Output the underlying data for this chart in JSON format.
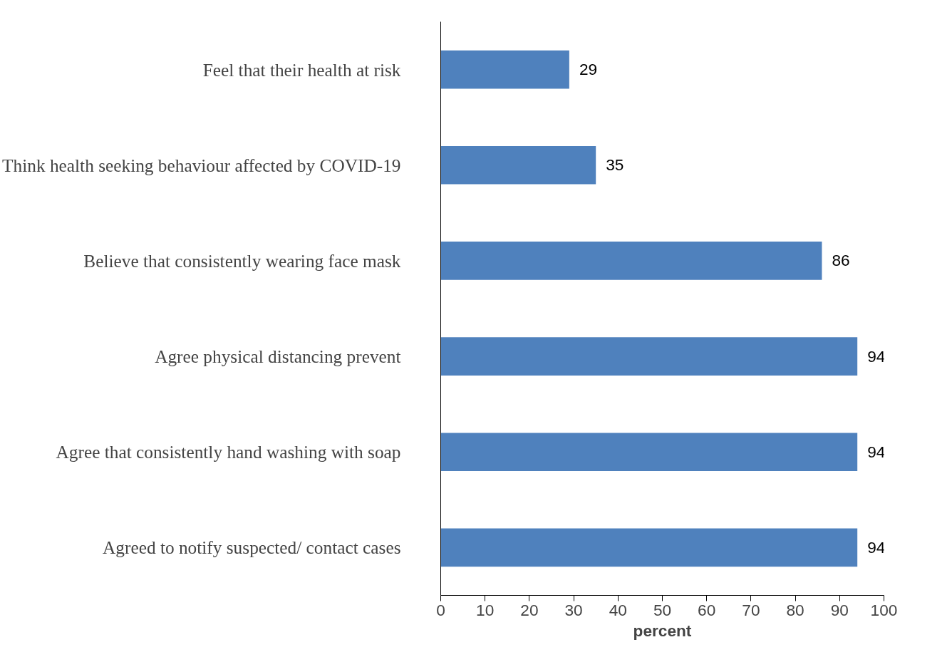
{
  "chart_data": {
    "type": "bar",
    "orientation": "horizontal",
    "xlabel": "percent",
    "categories": [
      "Feel that their health at risk",
      "Think health seeking behaviour affected by COVID-19",
      "Believe that consistently wearing face mask",
      "Agree physical distancing prevent",
      "Agree that consistently hand washing with soap",
      "Agreed to notify suspected/ contact cases"
    ],
    "values": [
      29,
      35,
      86,
      94,
      94,
      94
    ],
    "color": "#4f81bd",
    "xlim": [
      0,
      100
    ],
    "xticks": [
      0,
      10,
      20,
      30,
      40,
      50,
      60,
      70,
      80,
      90,
      100
    ],
    "grid": false,
    "data_labels": true
  }
}
